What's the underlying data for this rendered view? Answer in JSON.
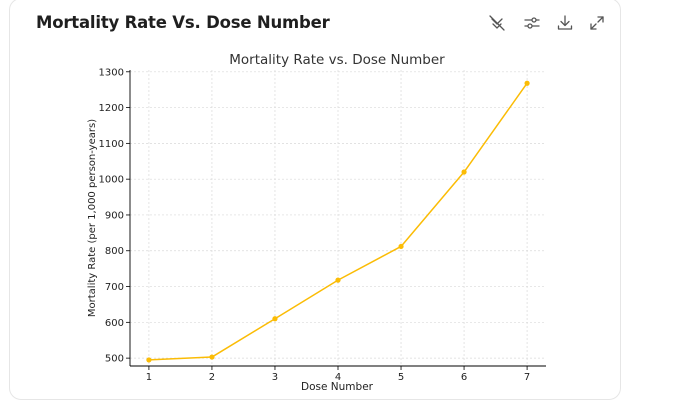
{
  "card": {
    "title": "Mortality Rate Vs. Dose Number"
  },
  "toolbar": {
    "icons": [
      "hide-pin-icon",
      "settings-sliders-icon",
      "download-icon",
      "expand-icon"
    ]
  },
  "colors": {
    "series": "#FBBC05",
    "axis": "#000000",
    "grid": "#d9d9d9",
    "text": "#333333"
  },
  "chart_data": {
    "type": "line",
    "title": "Mortality Rate vs. Dose Number",
    "xlabel": "Dose Number",
    "ylabel": "Mortality Rate (per 1,000 person-years)",
    "x": [
      1,
      2,
      3,
      4,
      5,
      6,
      7
    ],
    "series": [
      {
        "values": [
          495,
          503,
          610,
          718,
          812,
          1020,
          1268
        ]
      }
    ],
    "xticks": [
      "1",
      "2",
      "3",
      "4",
      "5",
      "6",
      "7"
    ],
    "yticks": [
      "500",
      "600",
      "700",
      "800",
      "900",
      "1000",
      "1100",
      "1200",
      "1300"
    ],
    "ylim": [
      478,
      1305
    ],
    "xlim": [
      0.7,
      7.3
    ],
    "grid": true,
    "marker": "circle"
  }
}
